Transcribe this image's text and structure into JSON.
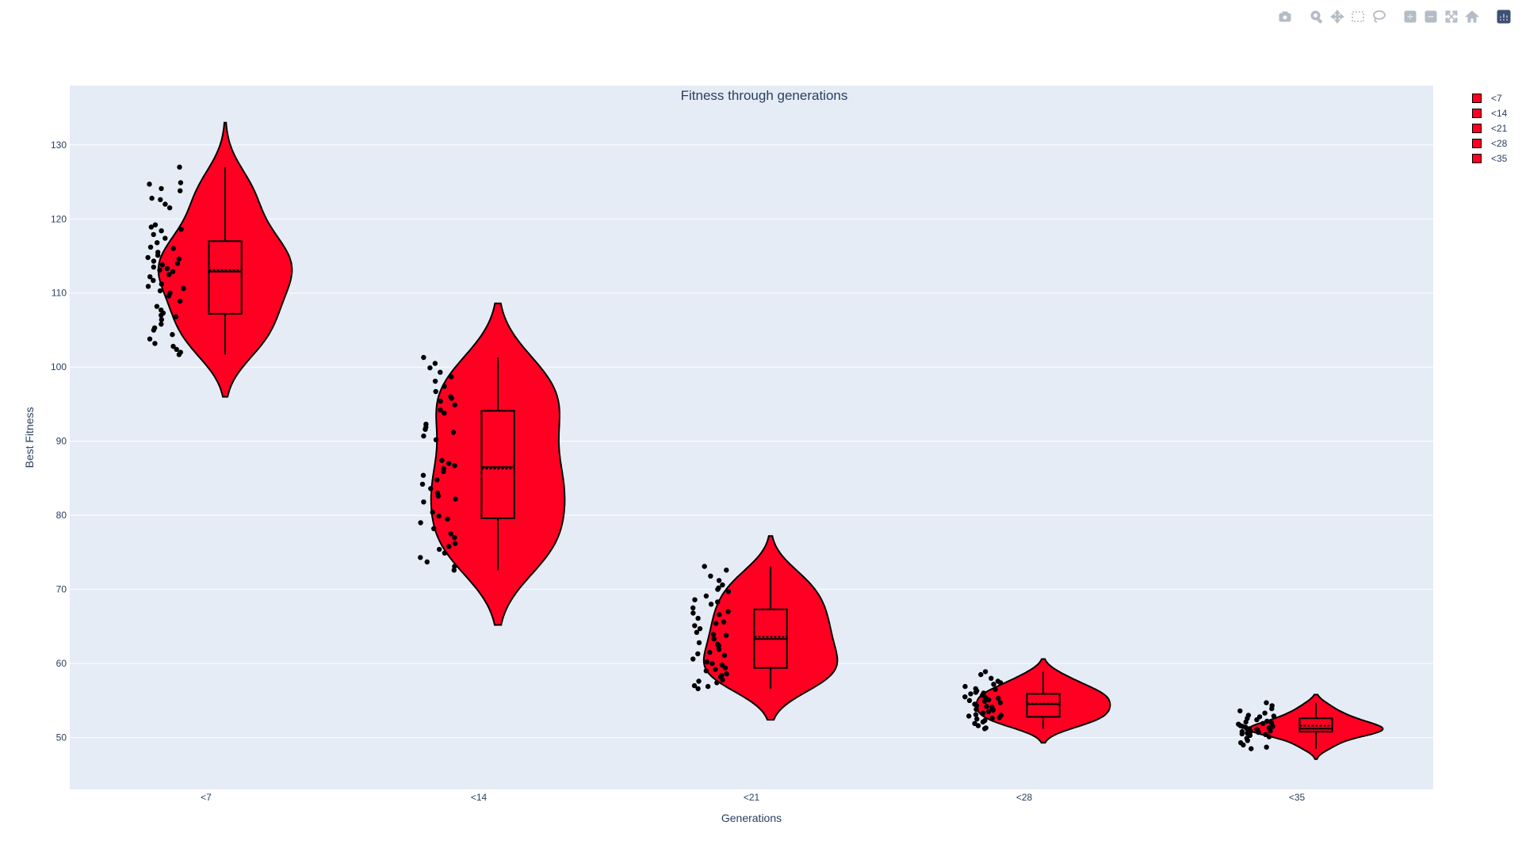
{
  "modebar": {
    "groups": [
      [
        "camera-icon"
      ],
      [
        "zoom-icon",
        "pan-icon",
        "box-select-icon",
        "lasso-icon"
      ],
      [
        "zoom-in-icon",
        "zoom-out-icon",
        "autoscale-icon",
        "home-icon"
      ],
      [
        "plotly-logo-icon"
      ]
    ]
  },
  "colors": {
    "fill": "#ff0022",
    "line": "#000000",
    "plot_bg": "#e5ecf6",
    "grid": "#ffffff",
    "text": "#2a3f5f",
    "icon": "#b4bcc5",
    "logo": "#3f4f75"
  },
  "legend_labels": [
    "<7",
    "<14",
    "<21",
    "<28",
    "<35"
  ],
  "chart_data": {
    "type": "violin",
    "title": "Fitness through generations",
    "xlabel": "Generations",
    "ylabel": "Best Fitness",
    "categories": [
      "<7",
      "<14",
      "<21",
      "<28",
      "<35"
    ],
    "ylim": [
      43,
      138
    ],
    "yticks": [
      50,
      60,
      70,
      80,
      90,
      100,
      110,
      120,
      130
    ],
    "grid": true,
    "legend_placement": "top-right",
    "series": [
      {
        "name": "<7",
        "min": 101.7,
        "q1": 107.2,
        "median": 112.9,
        "mean": 113.1,
        "q3": 117.0,
        "max": 127.0,
        "kde_max": 133,
        "kde_min": 96,
        "points": [
          127.0,
          124.9,
          124.7,
          124.1,
          123.8,
          122.8,
          122.6,
          122.0,
          121.5,
          119.2,
          118.9,
          118.6,
          118.4,
          117.9,
          117.4,
          116.8,
          116.2,
          116.0,
          115.5,
          115.1,
          114.8,
          114.6,
          114.3,
          114.0,
          113.8,
          113.5,
          113.3,
          113.1,
          112.9,
          112.5,
          112.2,
          111.7,
          111.2,
          110.9,
          110.6,
          110.3,
          110.0,
          109.6,
          108.9,
          108.2,
          107.7,
          107.3,
          107.0,
          106.8,
          106.4,
          105.8,
          105.3,
          105.0,
          104.4,
          103.8,
          103.2,
          102.8,
          102.4,
          102.0,
          101.7
        ]
      },
      {
        "name": "<14",
        "min": 72.6,
        "q1": 79.6,
        "median": 86.5,
        "mean": 86.3,
        "q3": 94.1,
        "max": 101.3,
        "kde_max": 108.6,
        "kde_min": 65.2,
        "points": [
          101.3,
          100.5,
          99.9,
          99.3,
          98.7,
          98.1,
          97.4,
          96.7,
          96.0,
          95.8,
          95.4,
          94.9,
          94.2,
          93.8,
          92.3,
          91.9,
          91.6,
          91.2,
          90.7,
          90.2,
          87.4,
          87.0,
          86.7,
          86.3,
          85.9,
          85.4,
          84.8,
          84.2,
          83.6,
          83.0,
          82.6,
          82.2,
          81.8,
          80.4,
          79.9,
          79.5,
          79.0,
          78.2,
          77.5,
          77.0,
          76.2,
          75.8,
          75.4,
          74.9,
          74.3,
          73.7,
          73.1,
          72.6
        ]
      },
      {
        "name": "<21",
        "min": 56.6,
        "q1": 59.4,
        "median": 63.3,
        "mean": 63.6,
        "q3": 67.3,
        "max": 73.1,
        "kde_max": 77.2,
        "kde_min": 52.4,
        "points": [
          73.1,
          72.6,
          71.8,
          71.2,
          70.6,
          70.2,
          69.7,
          69.1,
          68.6,
          68.0,
          67.5,
          67.0,
          66.6,
          66.1,
          65.6,
          65.1,
          64.7,
          64.2,
          63.8,
          63.3,
          62.8,
          62.4,
          61.9,
          61.5,
          61.1,
          60.6,
          60.2,
          59.8,
          59.4,
          59.0,
          58.6,
          58.2,
          57.8,
          57.4,
          57.0,
          56.6,
          56.9,
          57.6,
          58.4,
          59.2,
          60.0,
          61.3,
          62.6,
          63.9,
          65.4,
          66.8,
          68.3,
          70.0
        ]
      },
      {
        "name": "<28",
        "min": 51.2,
        "q1": 52.8,
        "median": 54.5,
        "mean": 54.6,
        "q3": 55.9,
        "max": 58.9,
        "kde_max": 60.6,
        "kde_min": 49.3,
        "points": [
          58.9,
          58.5,
          58.0,
          57.6,
          57.2,
          56.9,
          56.6,
          56.3,
          56.1,
          55.9,
          55.7,
          55.5,
          55.3,
          55.1,
          54.9,
          54.7,
          54.5,
          54.3,
          54.1,
          53.9,
          53.7,
          53.5,
          53.3,
          53.1,
          52.9,
          52.7,
          52.5,
          52.3,
          52.1,
          51.9,
          51.6,
          51.3,
          51.2,
          53.0,
          54.2,
          55.4,
          56.5,
          57.4,
          52.6,
          53.8,
          55.0,
          56.0
        ]
      },
      {
        "name": "<35",
        "min": 48.5,
        "q1": 50.8,
        "median": 51.2,
        "mean": 51.6,
        "q3": 52.6,
        "max": 54.7,
        "kde_max": 55.8,
        "kde_min": 47.1,
        "points": [
          54.7,
          54.3,
          53.9,
          53.6,
          53.3,
          53.0,
          52.8,
          52.6,
          52.4,
          52.2,
          52.0,
          51.8,
          51.6,
          51.5,
          51.4,
          51.3,
          51.2,
          51.1,
          51.0,
          50.9,
          50.8,
          50.7,
          50.6,
          50.5,
          50.3,
          50.1,
          49.9,
          49.6,
          49.3,
          49.0,
          48.7,
          48.5,
          51.2,
          51.0,
          50.8,
          51.5,
          52.1,
          50.4,
          51.9,
          52.9
        ]
      }
    ]
  }
}
